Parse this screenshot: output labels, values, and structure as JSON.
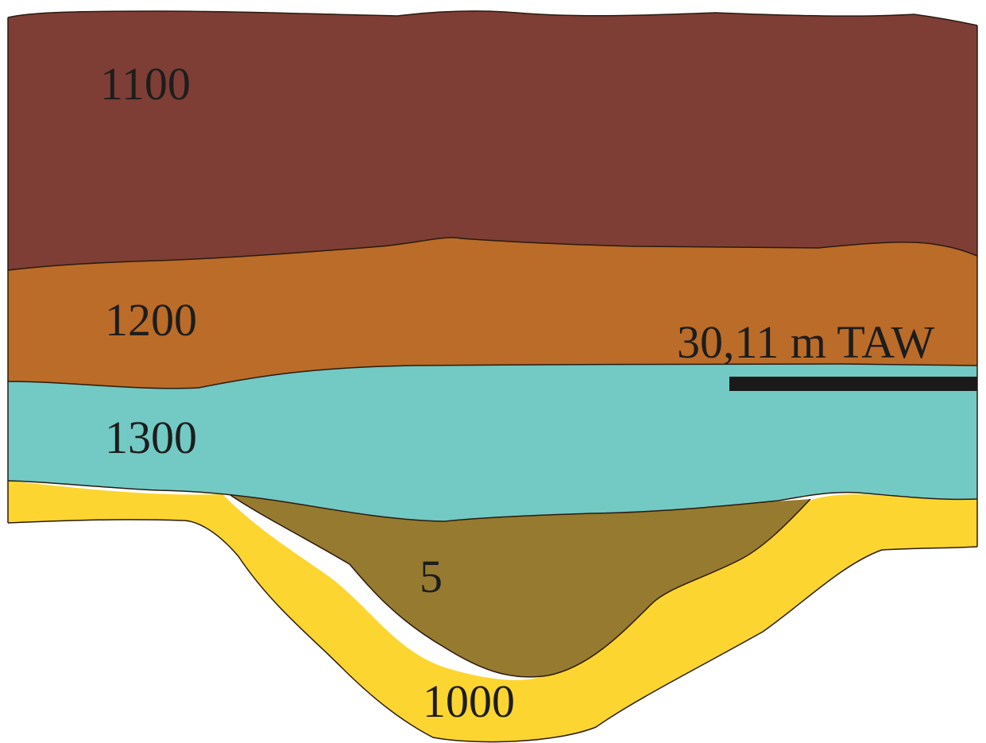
{
  "layers": [
    {
      "id": "1100",
      "label": "1100",
      "color": "#7e3e35"
    },
    {
      "id": "1200",
      "label": "1200",
      "color": "#bb6c28"
    },
    {
      "id": "1300",
      "label": "1300",
      "color": "#73c9c3"
    },
    {
      "id": "5",
      "label": "5",
      "color": "#967a2f"
    },
    {
      "id": "1000",
      "label": "1000",
      "color": "#fcd531"
    }
  ],
  "level_marker": {
    "label": "30,11 m TAW",
    "color": "#1a1a1a"
  }
}
